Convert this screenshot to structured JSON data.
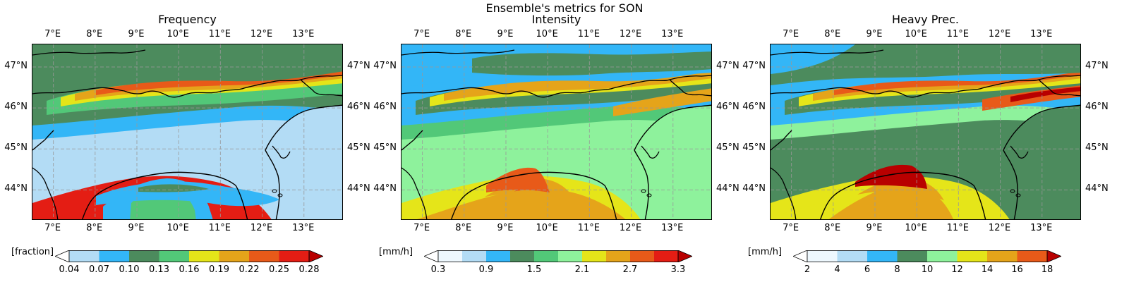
{
  "figure": {
    "title": "Ensemble's metrics for SON"
  },
  "axes": {
    "lon_ticks": [
      "7°E",
      "8°E",
      "9°E",
      "10°E",
      "11°E",
      "12°E",
      "13°E"
    ],
    "lat_ticks": [
      "47°N",
      "46°N",
      "45°N",
      "44°N"
    ],
    "lon_values": [
      7,
      8,
      9,
      10,
      11,
      12,
      13
    ],
    "lat_values": [
      47,
      46,
      45,
      44
    ],
    "lon_range": [
      6.5,
      13.95
    ],
    "lat_range": [
      43.25,
      47.55
    ],
    "grid": "dashed gray",
    "coastline_color": "#000000"
  },
  "panels": [
    {
      "title": "Frequency",
      "colorbar": {
        "unit": "[fraction]",
        "labels": [
          "0.04",
          "0.07",
          "0.10",
          "0.13",
          "0.16",
          "0.19",
          "0.22",
          "0.25",
          "0.28"
        ],
        "colors": [
          "#b3dcf5",
          "#33b6f7",
          "#4c8b5d",
          "#52c878",
          "#e5e519",
          "#e5a41a",
          "#e85a19",
          "#e41d14"
        ],
        "under_color": "#ffffff",
        "over_color": "#b80000"
      }
    },
    {
      "title": "Intensity",
      "colorbar": {
        "unit": "[mm/h]",
        "labels": [
          "0.3",
          "0.9",
          "1.5",
          "2.1",
          "2.7",
          "3.3"
        ],
        "colors": [
          "#eef8fe",
          "#b3dcf5",
          "#33b6f7",
          "#4c8b5d",
          "#52c878",
          "#8ef29c",
          "#e5e519",
          "#e5a41a",
          "#e85a19",
          "#e41d14"
        ],
        "under_color": "#ffffff",
        "over_color": "#b80000"
      }
    },
    {
      "title": "Heavy Prec.",
      "colorbar": {
        "unit": "[mm/h]",
        "labels": [
          "2",
          "4",
          "6",
          "8",
          "10",
          "12",
          "14",
          "16",
          "18"
        ],
        "colors": [
          "#eef8fe",
          "#b3dcf5",
          "#33b6f7",
          "#4c8b5d",
          "#8ef29c",
          "#e5e519",
          "#e5a41a",
          "#e85a19"
        ],
        "under_color": "#ffffff",
        "over_color": "#b80000"
      }
    }
  ]
}
